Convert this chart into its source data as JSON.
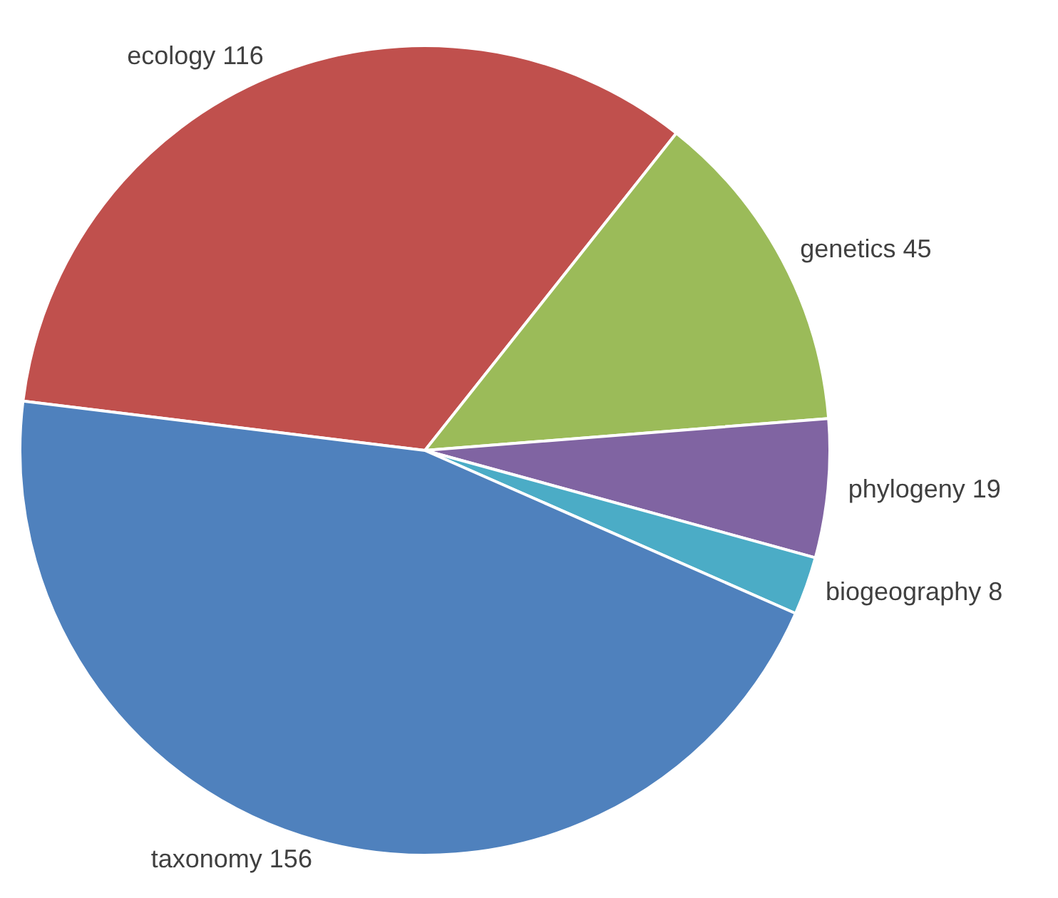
{
  "chart_data": {
    "type": "pie",
    "categories": [
      "ecology",
      "genetics",
      "phylogeny",
      "biogeography",
      "taxonomy"
    ],
    "values": [
      116,
      45,
      19,
      8,
      156
    ],
    "colors": [
      "#c0504d",
      "#9bbb59",
      "#8064a2",
      "#4bacc6",
      "#4f81bd"
    ],
    "data_labels": true,
    "legend": false
  }
}
